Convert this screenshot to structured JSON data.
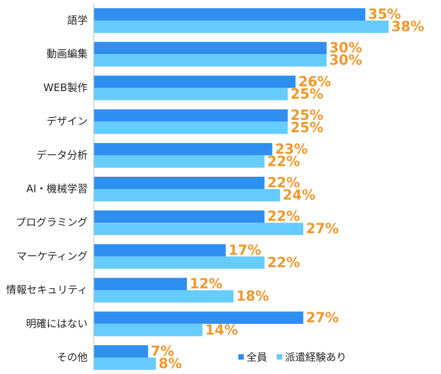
{
  "chart_data": {
    "type": "bar",
    "orientation": "horizontal",
    "legend": "lower right",
    "categories": [
      "語学",
      "動画編集",
      "WEB製作",
      "デザイン",
      "データ分析",
      "AI・機械学習",
      "プログラミング",
      "マーケティング",
      "情報セキュリティ",
      "明確にはない",
      "その他"
    ],
    "series": [
      {
        "name": "全員",
        "color": "#2f8ff0",
        "values": [
          35,
          30,
          26,
          25,
          23,
          22,
          22,
          17,
          12,
          27,
          7
        ],
        "value_labels": [
          "35%",
          "30%",
          "26%",
          "25%",
          "23%",
          "22%",
          "22%",
          "17%",
          "12%",
          "27%",
          "7%"
        ]
      },
      {
        "name": "派遣経験あり",
        "color": "#66ccff",
        "values": [
          38,
          30,
          25,
          25,
          22,
          24,
          27,
          22,
          18,
          14,
          8
        ],
        "value_labels": [
          "38%",
          "30%",
          "25%",
          "25%",
          "22%",
          "24%",
          "27%",
          "22%",
          "18%",
          "14%",
          "8%"
        ]
      }
    ]
  }
}
